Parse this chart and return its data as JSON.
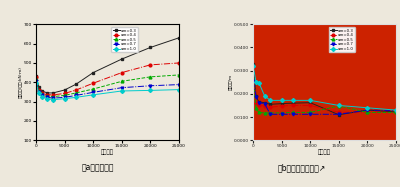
{
  "x_values": [
    0,
    500,
    1000,
    2000,
    3000,
    5000,
    7000,
    10000,
    15000,
    20000,
    25000
  ],
  "chart_a": {
    "ylabel": "塔底弯矩(单位:kN·m)",
    "xlabel": "阵尼系数",
    "caption": "（a）塔底弯矩",
    "ylim": [
      100,
      700
    ],
    "yticks": [
      100,
      200,
      300,
      400,
      500,
      600,
      700
    ],
    "xticks": [
      0,
      5000,
      10000,
      15000,
      20000,
      25000
    ],
    "bg_color": "#ede8dc",
    "series": {
      "am0.3": {
        "label": "αm=0.3",
        "color": "#222222",
        "marker": "s",
        "linestyle": "-",
        "values": [
          430,
          375,
          355,
          345,
          345,
          360,
          390,
          450,
          520,
          580,
          630
        ]
      },
      "am0.4": {
        "label": "αm=0.4",
        "color": "#dd0000",
        "marker": "o",
        "linestyle": "-.",
        "values": [
          425,
          360,
          345,
          335,
          335,
          342,
          360,
          395,
          450,
          490,
          500
        ]
      },
      "am0.5": {
        "label": "αm=0.5",
        "color": "#00aa00",
        "marker": "^",
        "linestyle": "--",
        "values": [
          415,
          355,
          338,
          328,
          326,
          332,
          345,
          365,
          405,
          428,
          438
        ]
      },
      "am0.7": {
        "label": "αm=0.7",
        "color": "#0000cc",
        "marker": "v",
        "linestyle": "-.",
        "values": [
          408,
          350,
          332,
          322,
          318,
          322,
          332,
          348,
          372,
          382,
          388
        ]
      },
      "am1.0": {
        "label": "αm=1.0",
        "color": "#00cccc",
        "marker": "D",
        "linestyle": "-",
        "values": [
          395,
          343,
          325,
          315,
          310,
          315,
          322,
          335,
          355,
          358,
          362
        ]
      }
    }
  },
  "chart_b": {
    "ylabel": "棁端位移/m",
    "xlabel": "阵尼系数",
    "caption": "（b）棁端纵向位移↗",
    "ylim": [
      0.0,
      0.05
    ],
    "yticks": [
      0.0,
      0.01,
      0.02,
      0.03,
      0.04,
      0.05
    ],
    "xticks": [
      0,
      5000,
      10000,
      15000,
      20000,
      25000
    ],
    "bg_color": "#cc2200",
    "series": {
      "am0.3": {
        "label": "αm=0.3",
        "color": "#222222",
        "marker": "s",
        "linestyle": "-",
        "values": [
          0.033,
          0.019,
          0.0165,
          0.0162,
          0.0155,
          0.0158,
          0.016,
          0.0162,
          0.011,
          0.013,
          0.0122
        ]
      },
      "am0.4": {
        "label": "αm=0.4",
        "color": "#dd0000",
        "marker": "o",
        "linestyle": "-.",
        "values": [
          0.031,
          0.016,
          0.015,
          0.0148,
          0.0142,
          0.0148,
          0.015,
          0.015,
          0.012,
          0.0122,
          0.012
        ]
      },
      "am0.5": {
        "label": "αm=0.5",
        "color": "#00aa00",
        "marker": "^",
        "linestyle": "--",
        "values": [
          0.0265,
          0.0138,
          0.012,
          0.0118,
          0.0118,
          0.0118,
          0.012,
          0.012,
          0.0148,
          0.012,
          0.012
        ]
      },
      "am0.7": {
        "label": "αm=0.7",
        "color": "#0000cc",
        "marker": "v",
        "linestyle": "-.",
        "values": [
          0.0255,
          0.0188,
          0.0162,
          0.0158,
          0.0112,
          0.0112,
          0.0112,
          0.0112,
          0.0112,
          0.013,
          0.0128
        ]
      },
      "am1.0": {
        "label": "αm=1.0",
        "color": "#00cccc",
        "marker": "D",
        "linestyle": "-",
        "values": [
          0.032,
          0.0252,
          0.0248,
          0.0192,
          0.0172,
          0.0172,
          0.0172,
          0.0172,
          0.015,
          0.014,
          0.013
        ]
      }
    }
  },
  "fig_bg": "#ede8dc",
  "right_bg": "#cc2200",
  "caption_fontsize": 5.5
}
